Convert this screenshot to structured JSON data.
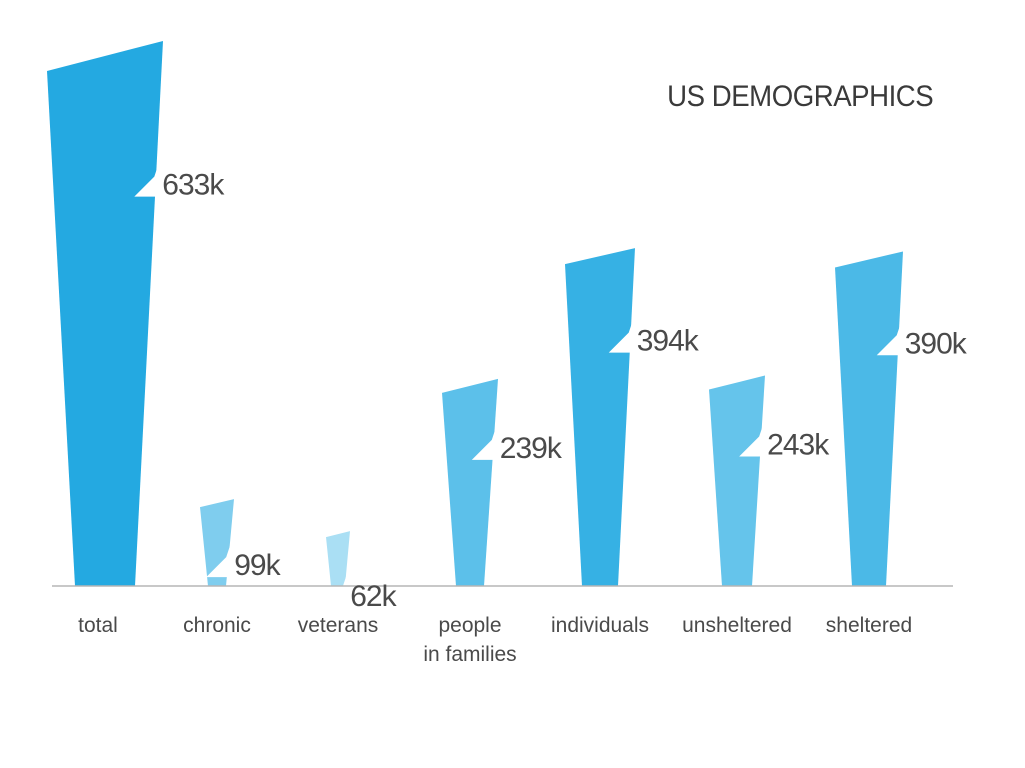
{
  "chart_data": {
    "type": "bar",
    "title": "US DEMOGRAPHICS",
    "xlabel": "",
    "ylabel": "",
    "categories": [
      "total",
      "chronic",
      "veterans",
      "people\nin families",
      "individuals",
      "unsheltered",
      "sheltered"
    ],
    "values": [
      633,
      99,
      62,
      239,
      394,
      243,
      390
    ],
    "value_labels": [
      "633k",
      "99k",
      "62k",
      "239k",
      "394k",
      "243k",
      "390k"
    ],
    "unit": "k",
    "ylim": [
      0,
      700
    ],
    "grid": false,
    "legend": "none",
    "colors": [
      "#24a9e1",
      "#7fcdee",
      "#aadff4",
      "#5cc0ea",
      "#36b1e4",
      "#65c4eb",
      "#4bb9e7"
    ],
    "baseline_color": "#b5b5b5",
    "label_color": "#4a4a4a"
  }
}
